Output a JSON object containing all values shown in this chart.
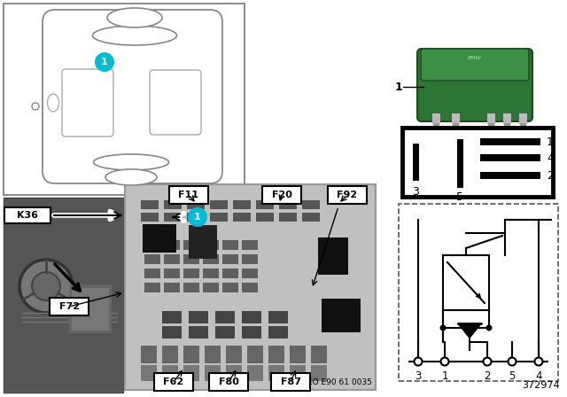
{
  "bg_color": "#ffffff",
  "cyan_color": "#00BCD4",
  "page_num": "372974",
  "bottom_text": "EO E90 61 0035",
  "fuse_labels_top": [
    "F11",
    "F20",
    "F92"
  ],
  "fuse_labels_left": [
    "K36",
    "F72"
  ],
  "fuse_labels_bottom": [
    "F62",
    "F80",
    "F87"
  ],
  "pin_left": [
    "3",
    "5"
  ],
  "pin_right": [
    "1",
    "4",
    "2"
  ],
  "schematic_pins": [
    "3",
    "1",
    "2",
    "5",
    "4"
  ]
}
